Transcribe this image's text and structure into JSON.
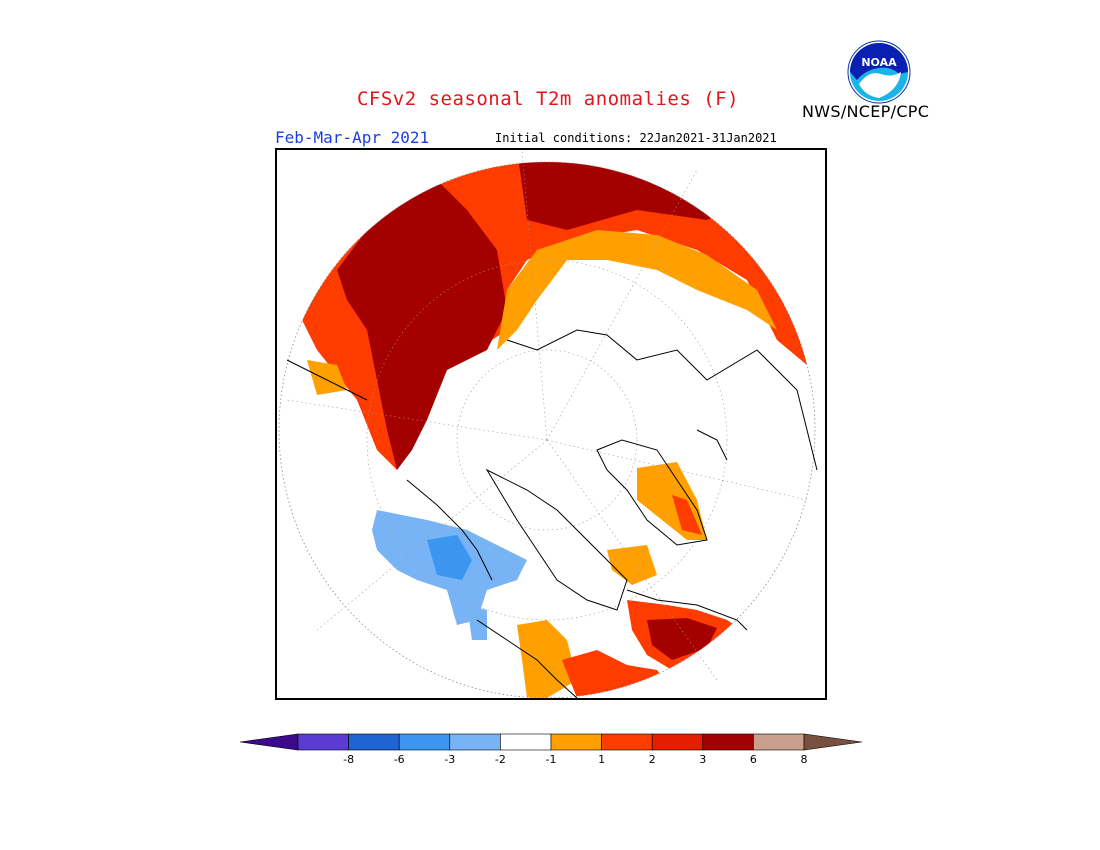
{
  "header": {
    "title": "CFSv2 seasonal T2m anomalies (F)",
    "season": "Feb-Mar-Apr 2021",
    "initial_conditions": "Initial conditions: 22Jan2021-31Jan2021",
    "agency": "NWS/NCEP/CPC",
    "logo_icon": "noaa-logo"
  },
  "map": {
    "projection": "north-polar-stereographic",
    "regions": [
      {
        "area": "northern Siberia / Arctic Russia",
        "category": "6",
        "color": "#a50000"
      },
      {
        "area": "Kazakhstan / Central Asia",
        "category": "3",
        "color": "#ff3c00"
      },
      {
        "area": "western Russia / Scandinavia margin",
        "category": "2",
        "color": "#ffa000"
      },
      {
        "area": "Alaska / western Canada",
        "category": "-2",
        "color": "#78b4f5"
      },
      {
        "area": "southwestern United States",
        "category": "2",
        "color": "#ffa000"
      },
      {
        "area": "northern Greenland",
        "category": "2",
        "color": "#ffa000"
      }
    ]
  },
  "colorbar": {
    "bins": [
      {
        "color": "#3c0a8c"
      },
      {
        "color": "#5a3cd2"
      },
      {
        "color": "#1e64d2"
      },
      {
        "color": "#3c96f0"
      },
      {
        "color": "#78b4f5"
      },
      {
        "color": "#ffffff"
      },
      {
        "color": "#ffa000"
      },
      {
        "color": "#ff3c00"
      },
      {
        "color": "#e61e00"
      },
      {
        "color": "#a50000"
      },
      {
        "color": "#c8a08c"
      },
      {
        "color": "#785040"
      }
    ],
    "labels": [
      "-8",
      "-6",
      "-3",
      "-2",
      "-1",
      "1",
      "2",
      "3",
      "6",
      "8"
    ]
  }
}
